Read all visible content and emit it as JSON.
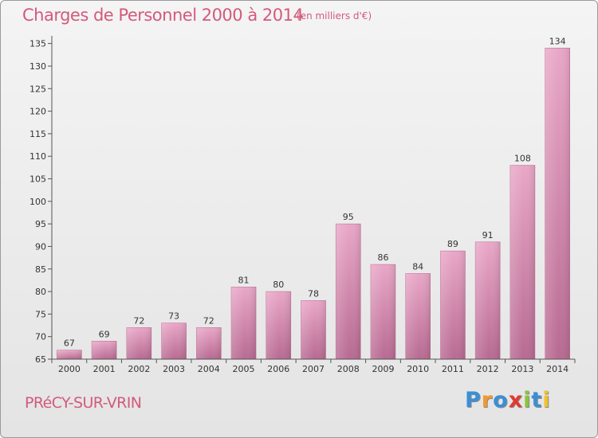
{
  "chart_data": {
    "type": "bar",
    "title": "Charges de Personnel 2000 à 2014",
    "subtitle": "(en milliers d'€)",
    "xlabel": "",
    "ylabel": "",
    "categories": [
      "2000",
      "2001",
      "2002",
      "2003",
      "2004",
      "2005",
      "2006",
      "2007",
      "2008",
      "2009",
      "2010",
      "2011",
      "2012",
      "2013",
      "2014"
    ],
    "values": [
      67,
      69,
      72,
      73,
      72,
      81,
      80,
      78,
      95,
      86,
      84,
      89,
      91,
      108,
      134
    ],
    "data_labels": [
      "67",
      "69",
      "72",
      "73",
      "72",
      "81",
      "80",
      "78",
      "95",
      "86",
      "84",
      "89",
      "91",
      "108",
      "134"
    ],
    "ylim": [
      65,
      136
    ],
    "yticks": [
      65,
      70,
      75,
      80,
      85,
      90,
      95,
      100,
      105,
      110,
      115,
      120,
      125,
      130,
      135
    ],
    "grid": false,
    "bar_color": "#d67aa6",
    "text_color": "#d35a7d"
  },
  "footer": {
    "place": "PRéCY-SUR-VRIN",
    "logo": "Proxiti",
    "logo_colors": [
      "#3a8fd6",
      "#f29a2e",
      "#3a8fd6",
      "#e23a2e",
      "#8cc43c",
      "#3a8fd6",
      "#f2c12e"
    ]
  }
}
